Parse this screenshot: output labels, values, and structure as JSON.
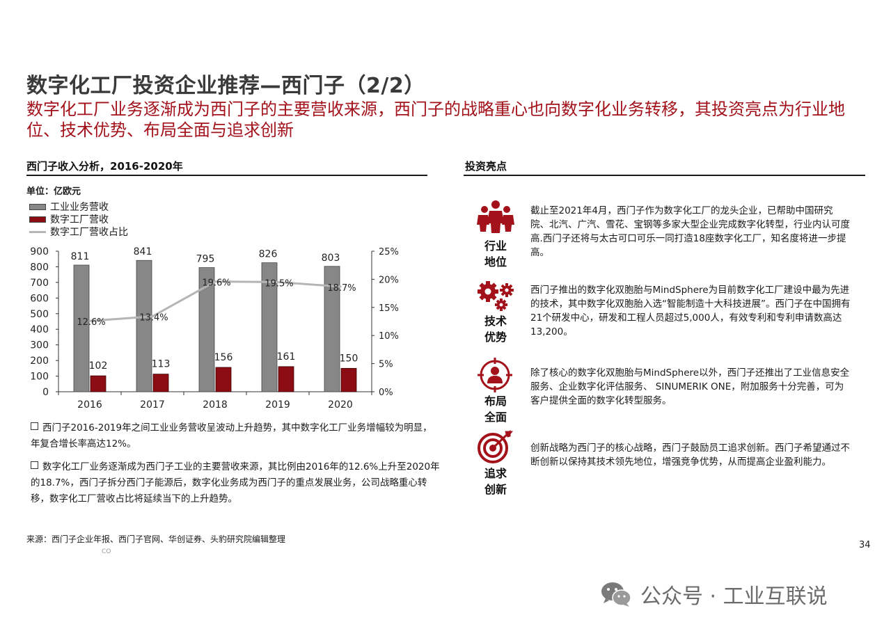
{
  "header": {
    "title": "数字化工厂投资企业推荐—西门子（2/2）",
    "subtitle": "数字化工厂业务逐渐成为西门子的主要营收来源，西门子的战略重心也向数字化业务转移，其投资亮点为行业地位、技术优势、布局全面与追求创新"
  },
  "left": {
    "section_title": "西门子收入分析，2016-2020年",
    "unit": "单位：亿欧元",
    "legend": [
      "工业业务营收",
      "数字工厂营收",
      "数字工厂营收占比"
    ],
    "notes": [
      "西门子2016-2019年之间工业业务营收呈波动上升趋势，其中数字化工厂业务增幅较为明显，年复合增长率高达12%。",
      "数字化工厂业务逐渐成为西门子工业的主要营收来源，其比例由2016年的12.6%上升至2020年的18.7%，西门子拆分西门子能源后，数字化业务成为西门子的重点发展业务，公司战略重心转移，数字化工厂营收占比将延续当下的上升趋势。"
    ]
  },
  "chart_data": {
    "type": "bar",
    "categories": [
      "2016",
      "2017",
      "2018",
      "2019",
      "2020"
    ],
    "series": [
      {
        "name": "工业业务营收",
        "type": "bar",
        "axis": "left",
        "color": "#878787",
        "values": [
          811,
          841,
          795,
          826,
          803
        ],
        "labels": [
          "811",
          "841",
          "795",
          "826",
          "803"
        ]
      },
      {
        "name": "数字工厂营收",
        "type": "bar",
        "axis": "left",
        "color": "#8b0c12",
        "values": [
          102,
          113,
          156,
          161,
          150
        ],
        "labels": [
          "102",
          "113",
          "156",
          "161",
          "150"
        ]
      },
      {
        "name": "数字工厂营收占比",
        "type": "line",
        "axis": "right",
        "color": "#b5b5b5",
        "values": [
          12.6,
          13.4,
          19.6,
          19.5,
          18.7
        ],
        "labels": [
          "12.6%",
          "13.4%",
          "19.6%",
          "19.5%",
          "18.7%"
        ]
      }
    ],
    "ylim": [
      0,
      900
    ],
    "yticks": [
      "0",
      "100",
      "200",
      "300",
      "400",
      "500",
      "600",
      "700",
      "800",
      "900"
    ],
    "y2lim": [
      0,
      25
    ],
    "y2ticks": [
      "0%",
      "5%",
      "10%",
      "15%",
      "20%",
      "25%"
    ],
    "grid": false
  },
  "right": {
    "section_title": "投资亮点",
    "highlights": [
      {
        "label_1": "行业",
        "label_2": "地位",
        "icon": "people-group-icon",
        "text": "截止至2021年4月，西门子作为数字化工厂的龙头企业，已帮助中国研究院、北汽、广汽、雪花、宝钢等多家大型企业完成数字化转型，行业内认可度高.西门子还将与太古可口可乐一同打造18座数字化工厂，知名度将进一步提高。"
      },
      {
        "label_1": "技术",
        "label_2": "优势",
        "icon": "gears-icon",
        "text": "西门子推出的数字化双胞胎与MindSphere为目前数字化工厂建设中最为先进的技术，其中数字化双胞胎入选“智能制造十大科技进展”。西门子在中国拥有21个研发中心，研发和工程人员超过5,000人，有效专利和专利申请数高达13,200。"
      },
      {
        "label_1": "布局",
        "label_2": "全面",
        "icon": "user-target-icon",
        "text": "除了核心的数字化双胞胎与MindSphere以外，西门子还推出了工业信息安全服务、企业数字化评估服务、 SINUMERIK ONE，附加服务十分完善，可为客户提供全面的数字化转型服务。"
      },
      {
        "label_1": "追求",
        "label_2": "创新",
        "icon": "bullseye-icon",
        "text": "创新战略为西门子的核心战略，西门子鼓励员工追求创新。西门子希望通过不断创新以保持其技术领先地位，增强竞争优势，从而提高企业盈利能力。"
      }
    ]
  },
  "footer": {
    "source": "来源：西门子企业年报、西门子官网、华创证券、头豹研究院编辑整理",
    "page": "34",
    "tiny": "CO"
  },
  "watermark": {
    "icon": "wechat-icon",
    "text": "公众号 · 工业互联说"
  },
  "colors": {
    "accent": "#a3121b",
    "bar_gray": "#878787",
    "bar_red": "#8b0c12",
    "line_gray": "#b5b5b5"
  }
}
